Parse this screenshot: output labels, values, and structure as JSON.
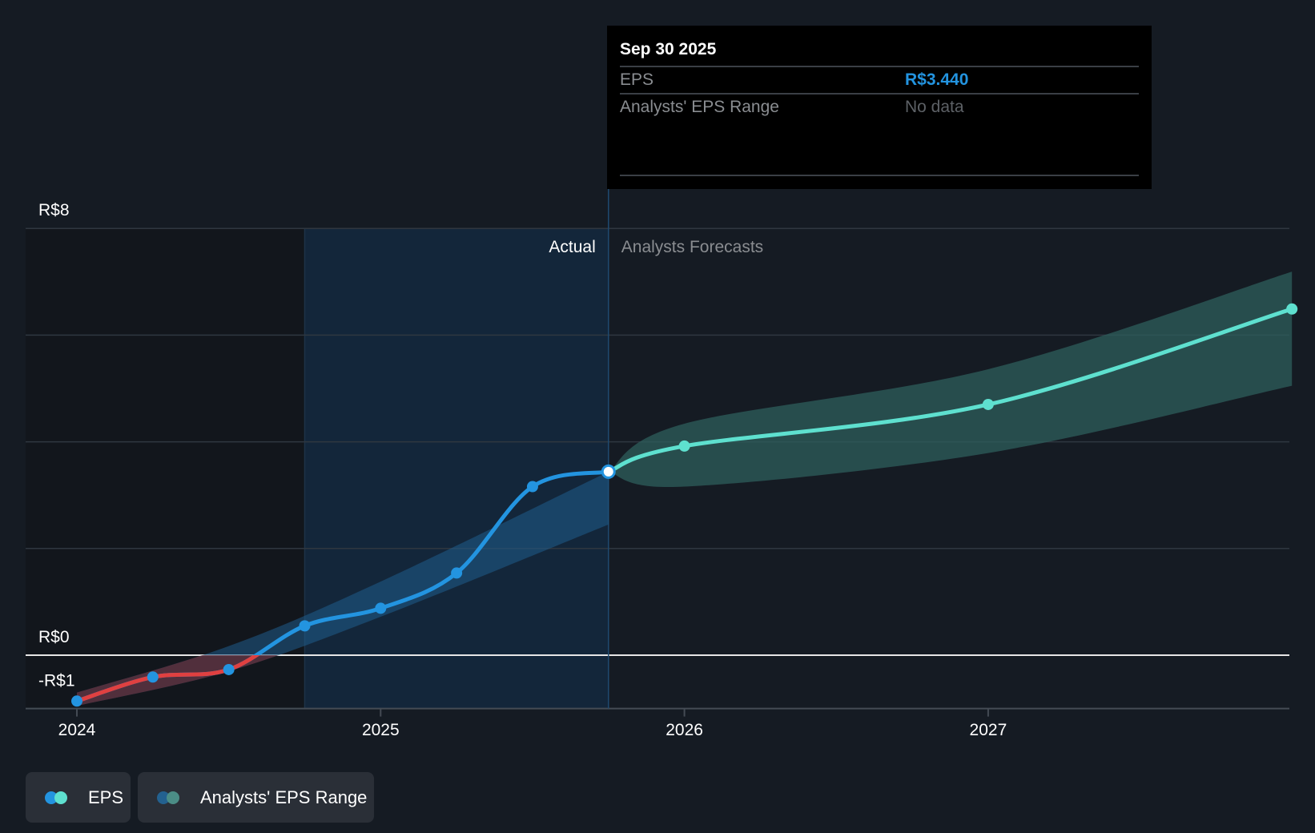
{
  "chart_data": {
    "type": "line",
    "title": "",
    "xlabel": "",
    "ylabel": "",
    "ylim": [
      -1,
      8
    ],
    "xlim": [
      2023.83,
      2028.0
    ],
    "y_ticks": [
      {
        "value": 8,
        "label": "R$8"
      },
      {
        "value": 0,
        "label": "R$0"
      },
      {
        "value": -1,
        "label": "-R$1"
      }
    ],
    "y_gridlines": [
      8,
      6,
      4,
      2,
      0
    ],
    "x_ticks": [
      {
        "value": 2024,
        "label": "2024"
      },
      {
        "value": 2025,
        "label": "2025"
      },
      {
        "value": 2026,
        "label": "2026"
      },
      {
        "value": 2027,
        "label": "2027"
      }
    ],
    "actual_start": 2024.75,
    "divider": 2025.75,
    "region_labels": {
      "actual": "Actual",
      "forecast": "Analysts Forecasts"
    },
    "series": [
      {
        "name": "EPS",
        "kind": "actual",
        "color": "#2394e0",
        "negative_color": "#e04040",
        "x": [
          2024.0,
          2024.25,
          2024.5,
          2024.75,
          2025.0,
          2025.25,
          2025.5,
          2025.75
        ],
        "y": [
          -0.86,
          -0.41,
          -0.27,
          0.55,
          0.88,
          1.54,
          3.16,
          3.44
        ]
      },
      {
        "name": "EPS",
        "kind": "forecast",
        "color": "#5ee0cf",
        "x": [
          2025.75,
          2026.0,
          2027.0,
          2028.0
        ],
        "y": [
          3.44,
          3.92,
          4.7,
          6.49
        ]
      },
      {
        "name": "Analysts' EPS Range",
        "kind": "actual-range",
        "color": "#1f5c8c",
        "x": [
          2024.0,
          2024.5,
          2025.0,
          2025.75
        ],
        "upper": [
          -0.7,
          0.17,
          1.38,
          3.44
        ],
        "lower": [
          -0.95,
          -0.3,
          0.72,
          2.45
        ]
      },
      {
        "name": "Analysts' EPS Range",
        "kind": "forecast-range",
        "color": "#2e5f5c",
        "x": [
          2025.75,
          2026.0,
          2027.0,
          2028.0
        ],
        "upper": [
          3.44,
          4.34,
          5.36,
          7.19
        ],
        "lower": [
          3.44,
          3.16,
          3.79,
          5.05
        ]
      }
    ],
    "legend": [
      {
        "label": "EPS",
        "colors": [
          "#2394e0",
          "#5ee0cf"
        ]
      },
      {
        "label": "Analysts' EPS Range",
        "colors": [
          "#23618f",
          "#4b8d86"
        ]
      }
    ],
    "legend_position": "bottom-left"
  },
  "tooltip": {
    "date": "Sep 30 2025",
    "rows": [
      {
        "label": "EPS",
        "value": "R$3.440",
        "color": "#2394e0"
      },
      {
        "label": "Analysts' EPS Range",
        "value": "No data",
        "color": "#5d6166"
      }
    ]
  }
}
